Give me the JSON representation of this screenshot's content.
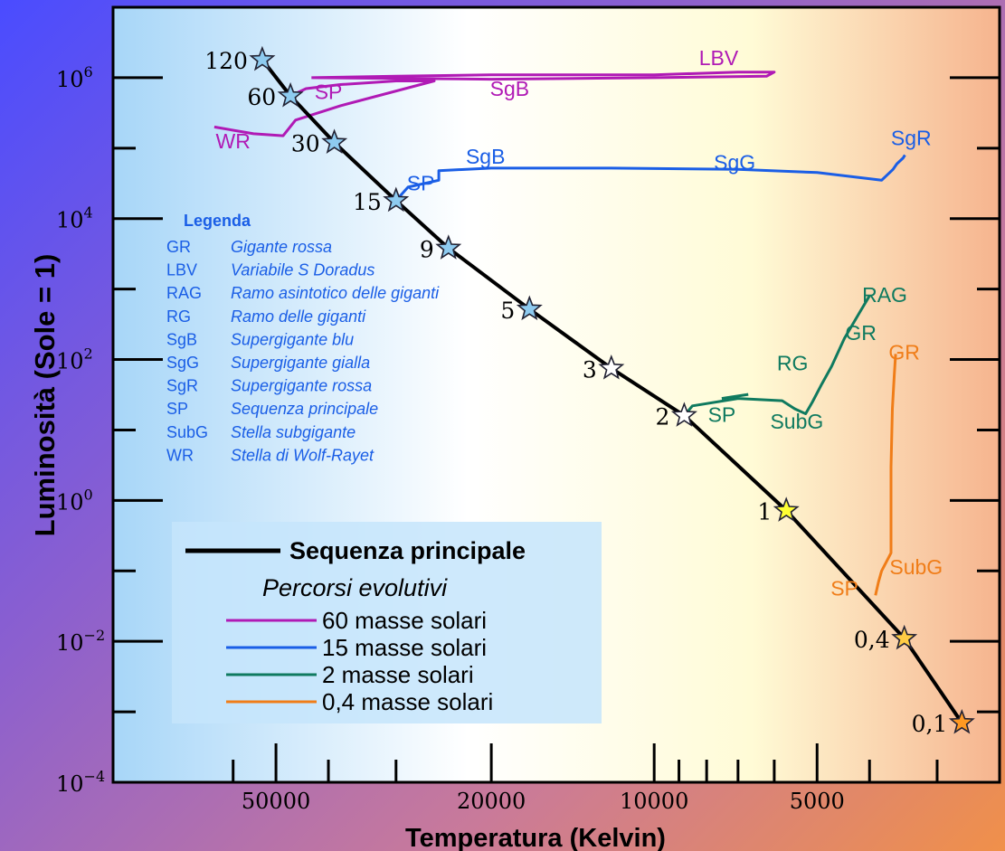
{
  "chart_data": {
    "type": "line",
    "xlabel": "Temperatura (Kelvin)",
    "ylabel": "Luminosità (Sole = 1)",
    "x_scale": "log-reversed",
    "y_scale": "log",
    "xlim": [
      100000,
      2300
    ],
    "ylim": [
      0.0001,
      10000000
    ],
    "x_ticks_labeled": [
      50000,
      20000,
      10000,
      5000
    ],
    "x_tick_labels": [
      "50000",
      "20000",
      "10000",
      "5000"
    ],
    "x_ticks_minor": [
      60000,
      40000,
      30000,
      9000,
      8000,
      7000,
      6000,
      4000,
      3000
    ],
    "y_ticks": [
      0.0001,
      0.01,
      1,
      100,
      10000,
      1000000
    ],
    "y_tick_labels": [
      {
        "base": "10",
        "exp": "−4"
      },
      {
        "base": "10",
        "exp": "−2"
      },
      {
        "base": "10",
        "exp": "0"
      },
      {
        "base": "10",
        "exp": "2"
      },
      {
        "base": "10",
        "exp": "4"
      },
      {
        "base": "10",
        "exp": "6"
      }
    ],
    "main_sequence": {
      "name": "Sequenza principale",
      "color": "#000000",
      "points": [
        {
          "mass": "120",
          "T": 53000,
          "L": 1800000,
          "star_color": "#8ecbf0"
        },
        {
          "mass": "60",
          "T": 47000,
          "L": 550000,
          "star_color": "#8ecbf0"
        },
        {
          "mass": "30",
          "T": 39000,
          "L": 120000,
          "star_color": "#8ecbf0"
        },
        {
          "mass": "15",
          "T": 30000,
          "L": 18000,
          "star_color": "#8ecbf0"
        },
        {
          "mass": "9",
          "T": 24000,
          "L": 3800,
          "star_color": "#8ecbf0"
        },
        {
          "mass": "5",
          "T": 17000,
          "L": 520,
          "star_color": "#8ecbf0"
        },
        {
          "mass": "3",
          "T": 12000,
          "L": 75,
          "star_color": "#ffffff"
        },
        {
          "mass": "2",
          "T": 8800,
          "L": 16,
          "star_color": "#ffffff"
        },
        {
          "mass": "1",
          "T": 5700,
          "L": 0.72,
          "star_color": "#ffff33"
        },
        {
          "mass": "0,4",
          "T": 3450,
          "L": 0.011,
          "star_color": "#ffcc44"
        },
        {
          "mass": "0,1",
          "T": 2700,
          "L": 0.0007,
          "star_color": "#ff9922"
        }
      ]
    },
    "series": [
      {
        "name": "60 masse solari",
        "color": "#b01ab5",
        "labels": [
          {
            "text": "LBV",
            "T": 7600,
            "L": 1500000
          },
          {
            "text": "SP",
            "T": 40000,
            "L": 500000
          },
          {
            "text": "SgB",
            "T": 18500,
            "L": 550000
          },
          {
            "text": "WR",
            "T": 60000,
            "L": 100000
          }
        ],
        "paths": [
          [
            [
              47000,
              550000
            ],
            [
              44000,
              700000
            ],
            [
              38000,
              800000
            ],
            [
              30000,
              900000
            ],
            [
              25500,
              900000
            ],
            [
              38000,
              400000
            ],
            [
              46000,
              250000
            ],
            [
              48500,
              150000
            ],
            [
              55000,
              160000
            ],
            [
              65000,
              200000
            ]
          ],
          [
            [
              43000,
              1000000
            ],
            [
              30000,
              1050000
            ],
            [
              20000,
              1100000
            ],
            [
              10000,
              1100000
            ],
            [
              7000,
              1200000
            ],
            [
              6000,
              1200000
            ],
            [
              6200,
              1050000
            ],
            [
              10000,
              1000000
            ],
            [
              20000,
              950000
            ],
            [
              43000,
              1000000
            ]
          ]
        ]
      },
      {
        "name": "15 masse solari",
        "color": "#1a5ee6",
        "labels": [
          {
            "text": "SgB",
            "T": 20500,
            "L": 60000
          },
          {
            "text": "SP",
            "T": 27000,
            "L": 25000
          },
          {
            "text": "SgG",
            "T": 7100,
            "L": 50000
          },
          {
            "text": "SgR",
            "T": 3350,
            "L": 110000
          }
        ],
        "paths": [
          [
            [
              30000,
              18000
            ],
            [
              28500,
              28000
            ],
            [
              25000,
              35000
            ],
            [
              25000,
              48000
            ],
            [
              20000,
              52000
            ],
            [
              12000,
              52000
            ],
            [
              7000,
              50000
            ],
            [
              5000,
              45000
            ],
            [
              3800,
              35000
            ],
            [
              3620,
              50000
            ],
            [
              3560,
              60000
            ],
            [
              3470,
              72000
            ],
            [
              3440,
              80000
            ]
          ]
        ]
      },
      {
        "name": "2  masse solari",
        "color": "#0f7a5f",
        "labels": [
          {
            "text": "RAG",
            "T": 3750,
            "L": 650
          },
          {
            "text": "GR",
            "T": 4150,
            "L": 190
          },
          {
            "text": "RG",
            "T": 5550,
            "L": 70
          },
          {
            "text": "SP",
            "T": 7500,
            "L": 13
          },
          {
            "text": "SubG",
            "T": 5450,
            "L": 10.5
          }
        ],
        "paths": [
          [
            [
              8800,
              16
            ],
            [
              8500,
              22
            ],
            [
              7000,
              28
            ],
            [
              5800,
              26
            ],
            [
              5500,
              20
            ],
            [
              5250,
              17
            ],
            [
              5100,
              25
            ],
            [
              4900,
              45
            ],
            [
              4700,
              80
            ],
            [
              4450,
              200
            ],
            [
              4150,
              500
            ],
            [
              4000,
              800
            ]
          ],
          [
            [
              7500,
              28
            ],
            [
              6700,
              32
            ]
          ]
        ]
      },
      {
        "name": "0,4 masse solari",
        "color": "#f07d18",
        "labels": [
          {
            "text": "GR",
            "T": 3450,
            "L": 100
          },
          {
            "text": "SP",
            "T": 4450,
            "L": 0.045
          },
          {
            "text": "SubG",
            "T": 3280,
            "L": 0.09
          }
        ],
        "paths": [
          [
            [
              3900,
              0.045
            ],
            [
              3850,
              0.07
            ],
            [
              3800,
              0.1
            ],
            [
              3650,
              0.18
            ],
            [
              3650,
              0.5
            ],
            [
              3650,
              3
            ],
            [
              3630,
              20
            ],
            [
              3600,
              60
            ],
            [
              3580,
              120
            ]
          ]
        ]
      }
    ],
    "legend": {
      "title": "Legenda",
      "entries": [
        {
          "abbr": "GR",
          "desc": "Gigante rossa"
        },
        {
          "abbr": "LBV",
          "desc": "Variabile S Doradus"
        },
        {
          "abbr": "RAG",
          "desc": "Ramo asintotico delle giganti"
        },
        {
          "abbr": "RG",
          "desc": "Ramo delle giganti"
        },
        {
          "abbr": "SgB",
          "desc": "Supergigante blu"
        },
        {
          "abbr": "SgG",
          "desc": "Supergigante gialla"
        },
        {
          "abbr": "SgR",
          "desc": "Supergigante rossa"
        },
        {
          "abbr": "SP",
          "desc": "Sequenza principale"
        },
        {
          "abbr": "SubG",
          "desc": "Stella subgigante"
        },
        {
          "abbr": "WR",
          "desc": "Stella di Wolf-Rayet"
        }
      ]
    },
    "track_legend": {
      "main_label": "Sequenza principale",
      "subtitle": "Percorsi evolutivi"
    },
    "legend_text_color": "#1a5ee6"
  }
}
